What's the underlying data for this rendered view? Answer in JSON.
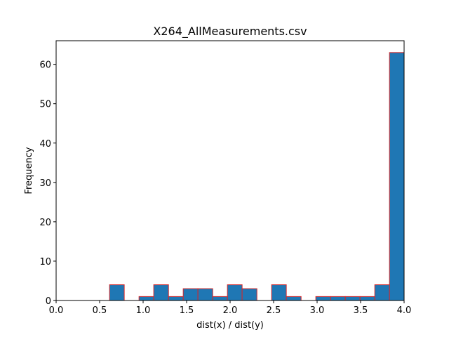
{
  "chart_data": {
    "type": "bar",
    "subtype": "histogram",
    "title": "X264_AllMeasurements.csv",
    "xlabel": "dist(x) / dist(y)",
    "ylabel": "Frequency",
    "xlim": [
      0.0,
      4.0
    ],
    "ylim": [
      0,
      66
    ],
    "grid": false,
    "bar_color": "#1f77b4",
    "edge_color": "#d62728",
    "x_ticks": [
      0.0,
      0.5,
      1.0,
      1.5,
      2.0,
      2.5,
      3.0,
      3.5,
      4.0
    ],
    "x_tick_labels": [
      "0.0",
      "0.5",
      "1.0",
      "1.5",
      "2.0",
      "2.5",
      "3.0",
      "3.5",
      "4.0"
    ],
    "y_ticks": [
      0,
      10,
      20,
      30,
      40,
      50,
      60
    ],
    "y_tick_labels": [
      "0",
      "10",
      "20",
      "30",
      "40",
      "50",
      "60"
    ],
    "bins": [
      {
        "x0": 0.614,
        "x1": 0.783,
        "count": 4
      },
      {
        "x0": 0.783,
        "x1": 0.953,
        "count": 0
      },
      {
        "x0": 0.953,
        "x1": 1.122,
        "count": 1
      },
      {
        "x0": 1.122,
        "x1": 1.292,
        "count": 4
      },
      {
        "x0": 1.292,
        "x1": 1.461,
        "count": 1
      },
      {
        "x0": 1.461,
        "x1": 1.63,
        "count": 3
      },
      {
        "x0": 1.63,
        "x1": 1.8,
        "count": 3
      },
      {
        "x0": 1.8,
        "x1": 1.969,
        "count": 1
      },
      {
        "x0": 1.969,
        "x1": 2.138,
        "count": 4
      },
      {
        "x0": 2.138,
        "x1": 2.308,
        "count": 3
      },
      {
        "x0": 2.308,
        "x1": 2.477,
        "count": 0
      },
      {
        "x0": 2.477,
        "x1": 2.646,
        "count": 4
      },
      {
        "x0": 2.646,
        "x1": 2.816,
        "count": 1
      },
      {
        "x0": 2.816,
        "x1": 2.985,
        "count": 0
      },
      {
        "x0": 2.985,
        "x1": 3.154,
        "count": 1
      },
      {
        "x0": 3.154,
        "x1": 3.324,
        "count": 1
      },
      {
        "x0": 3.324,
        "x1": 3.493,
        "count": 1
      },
      {
        "x0": 3.493,
        "x1": 3.663,
        "count": 1
      },
      {
        "x0": 3.663,
        "x1": 3.832,
        "count": 4
      },
      {
        "x0": 3.832,
        "x1": 4.001,
        "count": 63
      }
    ]
  }
}
